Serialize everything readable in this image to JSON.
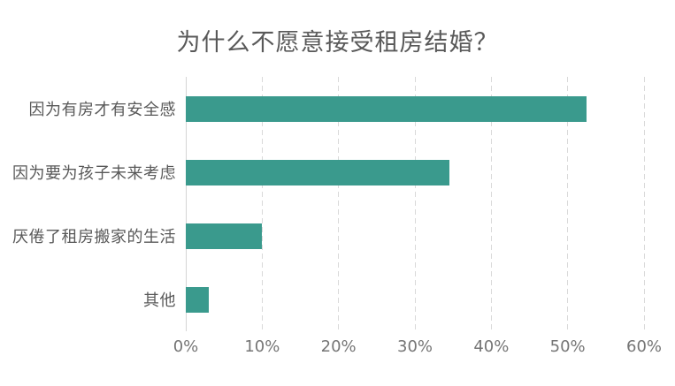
{
  "title": "为什么不愿意接受租房结婚？",
  "colors": {
    "bar": "#3a9a8d",
    "gridline": "#d9d9d9",
    "axis_line": "#d4d4d4",
    "title_text": "#595959",
    "category_text": "#595959",
    "tick_text": "#757575",
    "background": "#ffffff"
  },
  "chart_data": {
    "type": "bar",
    "orientation": "horizontal",
    "title": "为什么不愿意接受租房结婚？",
    "categories": [
      "因为有房才有安全感",
      "因为要为孩子未来考虑",
      "厌倦了租房搬家的生活",
      "其他"
    ],
    "values": [
      52.5,
      34.5,
      10,
      3
    ],
    "value_unit": "%",
    "xlabel": "",
    "ylabel": "",
    "xlim": [
      0,
      60
    ],
    "x_tick_values": [
      0,
      10,
      20,
      30,
      40,
      50,
      60
    ],
    "x_tick_labels": [
      "0%",
      "10%",
      "20%",
      "30%",
      "40%",
      "50%",
      "60%"
    ],
    "grid": "vertical-dashed",
    "legend": "none",
    "bar_color": "#3a9a8d"
  }
}
